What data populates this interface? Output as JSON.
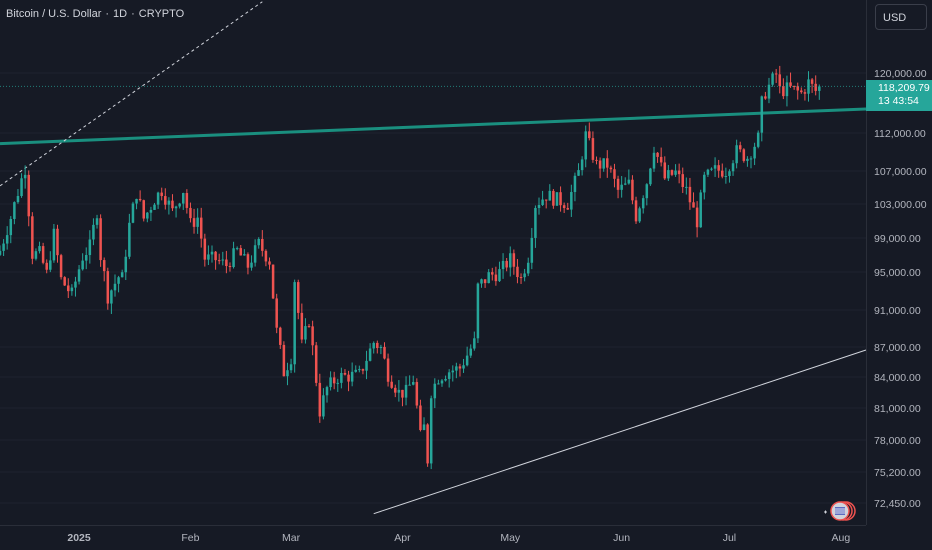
{
  "header": {
    "symbol": "Bitcoin / U.S. Dollar",
    "interval": "1D",
    "exchange": "CRYPTO",
    "separator": "·"
  },
  "currency_button": "USD",
  "price_tag": {
    "price": "118,209.79",
    "countdown": "13 43:54"
  },
  "colors": {
    "background": "#161a25",
    "up": "#26a69a",
    "down": "#ef5350",
    "trendline_teal": "#1a8f7f",
    "axis_text": "#b2b5be",
    "grid": "#1f2330"
  },
  "chart_data": {
    "type": "candlestick",
    "title": "Bitcoin / U.S. Dollar · 1D · CRYPTO",
    "xlabel": "",
    "ylabel": "",
    "y_axis_ticks": [
      120000,
      112000,
      107000,
      103000,
      99000,
      95000,
      91000,
      87000,
      84000,
      81000,
      78000,
      75200,
      72450
    ],
    "y_axis_labels": [
      "120,000.00",
      "112,000.00",
      "107,000.00",
      "103,000.00",
      "99,000.00",
      "95,000.00",
      "91,000.00",
      "87,000.00",
      "84,000.00",
      "81,000.00",
      "78,000.00",
      "75,200.00",
      "72,450.00"
    ],
    "x_axis_labels": [
      "2025",
      "Feb",
      "Mar",
      "Apr",
      "May",
      "Jun",
      "Jul",
      "Aug"
    ],
    "x_axis_dates": [
      "2025-01-01",
      "2025-02-01",
      "2025-03-01",
      "2025-04-01",
      "2025-05-01",
      "2025-06-01",
      "2025-07-01",
      "2025-08-01"
    ],
    "x_range": [
      "2024-12-10",
      "2025-08-08"
    ],
    "last_price": 118209.79,
    "close_series": [
      {
        "d": "2024-12-10",
        "c": 97500
      },
      {
        "d": "2024-12-13",
        "c": 101400
      },
      {
        "d": "2024-12-16",
        "c": 106000
      },
      {
        "d": "2024-12-17",
        "c": 107400
      },
      {
        "d": "2024-12-19",
        "c": 97100
      },
      {
        "d": "2024-12-21",
        "c": 97200
      },
      {
        "d": "2024-12-23",
        "c": 94800
      },
      {
        "d": "2024-12-25",
        "c": 99400
      },
      {
        "d": "2024-12-27",
        "c": 94200
      },
      {
        "d": "2024-12-30",
        "c": 92600
      },
      {
        "d": "2025-01-02",
        "c": 96800
      },
      {
        "d": "2025-01-04",
        "c": 98000
      },
      {
        "d": "2025-01-06",
        "c": 102200
      },
      {
        "d": "2025-01-07",
        "c": 96900
      },
      {
        "d": "2025-01-09",
        "c": 92500
      },
      {
        "d": "2025-01-12",
        "c": 94500
      },
      {
        "d": "2025-01-13",
        "c": 94300
      },
      {
        "d": "2025-01-15",
        "c": 100500
      },
      {
        "d": "2025-01-17",
        "c": 104400
      },
      {
        "d": "2025-01-19",
        "c": 101300
      },
      {
        "d": "2025-01-20",
        "c": 102000
      },
      {
        "d": "2025-01-22",
        "c": 103600
      },
      {
        "d": "2025-01-24",
        "c": 104700
      },
      {
        "d": "2025-01-27",
        "c": 102100
      },
      {
        "d": "2025-01-30",
        "c": 104700
      },
      {
        "d": "2025-02-01",
        "c": 100600
      },
      {
        "d": "2025-02-03",
        "c": 101400
      },
      {
        "d": "2025-02-05",
        "c": 96600
      },
      {
        "d": "2025-02-08",
        "c": 96500
      },
      {
        "d": "2025-02-11",
        "c": 95800
      },
      {
        "d": "2025-02-14",
        "c": 97500
      },
      {
        "d": "2025-02-17",
        "c": 95700
      },
      {
        "d": "2025-02-20",
        "c": 98300
      },
      {
        "d": "2025-02-23",
        "c": 96300
      },
      {
        "d": "2025-02-25",
        "c": 88700
      },
      {
        "d": "2025-02-27",
        "c": 84500
      },
      {
        "d": "2025-03-01",
        "c": 86000
      },
      {
        "d": "2025-03-02",
        "c": 94200
      },
      {
        "d": "2025-03-04",
        "c": 87200
      },
      {
        "d": "2025-03-06",
        "c": 89900
      },
      {
        "d": "2025-03-09",
        "c": 80700
      },
      {
        "d": "2025-03-11",
        "c": 82900
      },
      {
        "d": "2025-03-14",
        "c": 84000
      },
      {
        "d": "2025-03-17",
        "c": 84100
      },
      {
        "d": "2025-03-20",
        "c": 84200
      },
      {
        "d": "2025-03-24",
        "c": 87500
      },
      {
        "d": "2025-03-26",
        "c": 86900
      },
      {
        "d": "2025-03-28",
        "c": 84300
      },
      {
        "d": "2025-03-31",
        "c": 82500
      },
      {
        "d": "2025-04-02",
        "c": 82500
      },
      {
        "d": "2025-04-04",
        "c": 83800
      },
      {
        "d": "2025-04-06",
        "c": 78300
      },
      {
        "d": "2025-04-07",
        "c": 79200
      },
      {
        "d": "2025-04-08",
        "c": 76300
      },
      {
        "d": "2025-04-09",
        "c": 82600
      },
      {
        "d": "2025-04-11",
        "c": 84000
      },
      {
        "d": "2025-04-14",
        "c": 84600
      },
      {
        "d": "2025-04-17",
        "c": 84900
      },
      {
        "d": "2025-04-21",
        "c": 87500
      },
      {
        "d": "2025-04-22",
        "c": 93400
      },
      {
        "d": "2025-04-25",
        "c": 94600
      },
      {
        "d": "2025-04-28",
        "c": 95000
      },
      {
        "d": "2025-05-01",
        "c": 96500
      },
      {
        "d": "2025-05-04",
        "c": 94300
      },
      {
        "d": "2025-05-06",
        "c": 96800
      },
      {
        "d": "2025-05-08",
        "c": 103000
      },
      {
        "d": "2025-05-11",
        "c": 104100
      },
      {
        "d": "2025-05-14",
        "c": 103500
      },
      {
        "d": "2025-05-17",
        "c": 103100
      },
      {
        "d": "2025-05-20",
        "c": 106800
      },
      {
        "d": "2025-05-22",
        "c": 111700
      },
      {
        "d": "2025-05-25",
        "c": 107800
      },
      {
        "d": "2025-05-28",
        "c": 107800
      },
      {
        "d": "2025-05-31",
        "c": 104600
      },
      {
        "d": "2025-06-03",
        "c": 105400
      },
      {
        "d": "2025-06-05",
        "c": 101600
      },
      {
        "d": "2025-06-08",
        "c": 105700
      },
      {
        "d": "2025-06-10",
        "c": 110200
      },
      {
        "d": "2025-06-13",
        "c": 106100
      },
      {
        "d": "2025-06-16",
        "c": 106800
      },
      {
        "d": "2025-06-19",
        "c": 104600
      },
      {
        "d": "2025-06-21",
        "c": 102200
      },
      {
        "d": "2025-06-22",
        "c": 101000
      },
      {
        "d": "2025-06-24",
        "c": 106000
      },
      {
        "d": "2025-06-27",
        "c": 107100
      },
      {
        "d": "2025-06-30",
        "c": 107100
      },
      {
        "d": "2025-07-03",
        "c": 109600
      },
      {
        "d": "2025-07-06",
        "c": 108800
      },
      {
        "d": "2025-07-09",
        "c": 111300
      },
      {
        "d": "2025-07-10",
        "c": 115900
      },
      {
        "d": "2025-07-11",
        "c": 117500
      },
      {
        "d": "2025-07-14",
        "c": 119800
      },
      {
        "d": "2025-07-15",
        "c": 117700
      },
      {
        "d": "2025-07-18",
        "c": 117900
      },
      {
        "d": "2025-07-21",
        "c": 117300
      },
      {
        "d": "2025-07-23",
        "c": 118700
      },
      {
        "d": "2025-07-25",
        "c": 117600
      },
      {
        "d": "2025-07-26",
        "c": 118209.79
      }
    ],
    "trendlines": [
      {
        "name": "horizontal-resistance",
        "style": "solid",
        "color": "#1a8f7f",
        "from": {
          "d": "2024-12-10",
          "y": 110600
        },
        "to": {
          "d": "2025-08-08",
          "y": 115200
        }
      },
      {
        "name": "upper-channel",
        "style": "dashed",
        "color": "#d1d4dc",
        "from": {
          "d": "2024-12-10",
          "y": 105200
        },
        "to": {
          "d": "2025-02-21",
          "y": 129500
        }
      },
      {
        "name": "lower-channel",
        "style": "solid",
        "color": "#d1d4dc",
        "from": {
          "d": "2025-03-24",
          "y": 71500
        },
        "to": {
          "d": "2025-08-08",
          "y": 86700
        }
      }
    ],
    "grid": false,
    "legend": "none"
  }
}
